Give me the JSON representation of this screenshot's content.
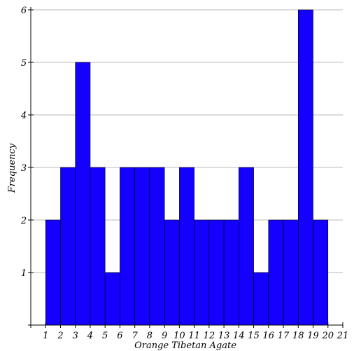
{
  "chart_data": {
    "type": "bar",
    "subtype": "histogram",
    "title": "",
    "xlabel": "Orange Tibetan Agate",
    "ylabel": "Frequency",
    "bins": [
      {
        "x0": 1,
        "x1": 2,
        "count": 2
      },
      {
        "x0": 2,
        "x1": 3,
        "count": 3
      },
      {
        "x0": 3,
        "x1": 4,
        "count": 5
      },
      {
        "x0": 4,
        "x1": 5,
        "count": 3
      },
      {
        "x0": 5,
        "x1": 6,
        "count": 1
      },
      {
        "x0": 6,
        "x1": 7,
        "count": 3
      },
      {
        "x0": 7,
        "x1": 8,
        "count": 3
      },
      {
        "x0": 8,
        "x1": 9,
        "count": 3
      },
      {
        "x0": 9,
        "x1": 10,
        "count": 2
      },
      {
        "x0": 10,
        "x1": 11,
        "count": 3
      },
      {
        "x0": 11,
        "x1": 12,
        "count": 2
      },
      {
        "x0": 12,
        "x1": 13,
        "count": 2
      },
      {
        "x0": 13,
        "x1": 14,
        "count": 2
      },
      {
        "x0": 14,
        "x1": 15,
        "count": 3
      },
      {
        "x0": 15,
        "x1": 16,
        "count": 1
      },
      {
        "x0": 16,
        "x1": 17,
        "count": 2
      },
      {
        "x0": 17,
        "x1": 18,
        "count": 2
      },
      {
        "x0": 18,
        "x1": 19,
        "count": 6
      },
      {
        "x0": 19,
        "x1": 20,
        "count": 2
      }
    ],
    "xlim": [
      0,
      21
    ],
    "ylim": [
      0,
      6
    ],
    "xticks": [
      "1",
      "2",
      "3",
      "4",
      "5",
      "6",
      "7",
      "8",
      "9",
      "10",
      "11",
      "12",
      "13",
      "14",
      "15",
      "16",
      "17",
      "18",
      "19",
      "20",
      "21"
    ],
    "yticks": [
      "1",
      "2",
      "3",
      "4",
      "5",
      "6"
    ],
    "grid": "horizontal",
    "bar_color": "#1400ff",
    "bar_edge_color": "#000000",
    "grid_color": "#bbbbbb"
  }
}
